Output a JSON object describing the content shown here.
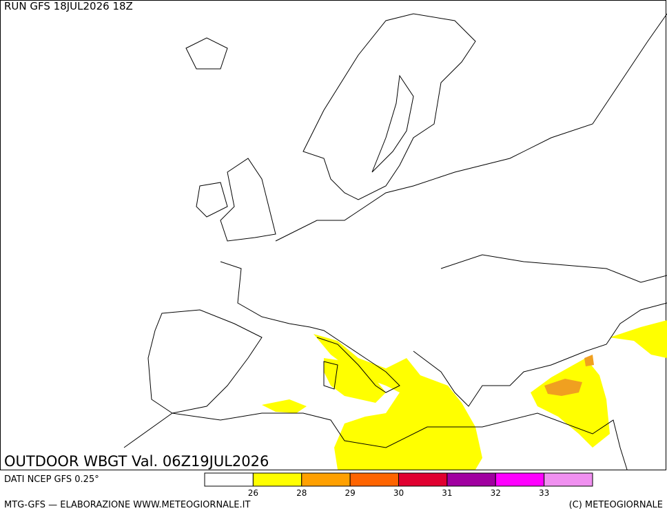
{
  "header": {
    "run": "RUN GFS 18JUL2026 18Z"
  },
  "map": {
    "title": "OUTDOOR WBGT Val. 06Z19JUL2026"
  },
  "legend": {
    "source": "DATI NCEP GFS 0.25°",
    "colors": [
      "#ffffff",
      "#ffff00",
      "#ffa000",
      "#ff6400",
      "#e00030",
      "#a000a0",
      "#ff00ff",
      "#f090f0"
    ],
    "labels": [
      "26",
      "28",
      "29",
      "30",
      "31",
      "32",
      "33"
    ]
  },
  "footer": {
    "left": "MTG-GFS — ELABORAZIONE WWW.METEOGIORNALE.IT",
    "right": "(C) METEOGIORNALE"
  }
}
